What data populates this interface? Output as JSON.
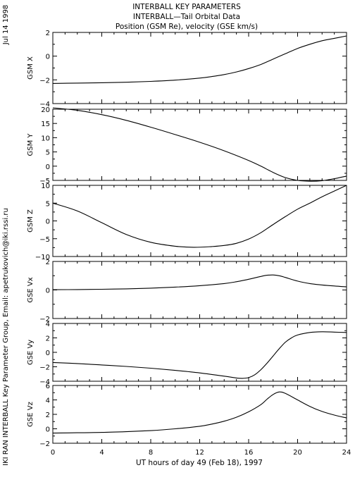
{
  "header": {
    "title_lines": [
      "INTERBALL KEY PARAMETERS",
      "INTERBALL—Tail Orbital Data",
      "Position (GSM Re), velocity (GSE km/s)"
    ],
    "date": "Jul 14 1998",
    "credit": "IKI RAN INTERBALL Key Parameter Group, Email: apetrukovich@iki.rssi.ru"
  },
  "chart_data": {
    "type": "line",
    "xlabel": "UT hours of day  49 (Feb 18), 1997",
    "xlim": [
      0,
      24
    ],
    "xticks": [
      "0",
      "4",
      "8",
      "12",
      "16",
      "20",
      "24"
    ],
    "xtick_values": [
      0,
      4,
      8,
      12,
      16,
      20,
      24
    ],
    "x_minor_step": 1,
    "grid": false,
    "line_color": "#000000",
    "panels": [
      {
        "ylabel": "GSM X",
        "ylim": [
          -4,
          2
        ],
        "yticks": [
          -4,
          -2,
          0,
          2
        ],
        "ytick_labels": [
          "−4",
          "−2",
          "0",
          "2"
        ],
        "x": [
          0,
          2,
          4,
          6,
          8,
          10,
          12,
          13,
          14,
          15,
          16,
          17,
          18,
          19,
          20,
          21,
          22,
          23,
          24
        ],
        "values": [
          -2.3,
          -2.27,
          -2.24,
          -2.2,
          -2.13,
          -2.02,
          -1.85,
          -1.72,
          -1.55,
          -1.33,
          -1.05,
          -0.7,
          -0.25,
          0.2,
          0.65,
          1.0,
          1.3,
          1.5,
          1.7
        ]
      },
      {
        "ylabel": "GSM Y",
        "ylim": [
          -5,
          20
        ],
        "yticks": [
          -5,
          0,
          5,
          10,
          15,
          20
        ],
        "ytick_labels": [
          "−5",
          "0",
          "5",
          "10",
          "15",
          "20"
        ],
        "x": [
          0,
          2,
          4,
          6,
          8,
          10,
          12,
          14,
          16,
          17,
          18,
          19,
          20,
          21,
          22,
          23,
          24
        ],
        "values": [
          20.5,
          19.6,
          18.1,
          16.1,
          13.7,
          11.1,
          8.4,
          5.4,
          2.0,
          0.0,
          -2.2,
          -4.0,
          -5.0,
          -5.3,
          -5.1,
          -4.4,
          -3.5
        ]
      },
      {
        "ylabel": "GSM Z",
        "ylim": [
          -10,
          10
        ],
        "yticks": [
          -10,
          -5,
          0,
          5,
          10
        ],
        "ytick_labels": [
          "−10",
          "−5",
          "0",
          "5",
          "10"
        ],
        "x": [
          0,
          2,
          4,
          6,
          8,
          10,
          11.5,
          13,
          14,
          15,
          16,
          17,
          18,
          19,
          20,
          21,
          22,
          23,
          24
        ],
        "values": [
          5.0,
          2.8,
          -0.5,
          -3.8,
          -6.0,
          -7.1,
          -7.4,
          -7.2,
          -6.9,
          -6.3,
          -5.1,
          -3.3,
          -1.0,
          1.2,
          3.3,
          5.0,
          6.8,
          8.4,
          10.0
        ]
      },
      {
        "ylabel": "GSE Vx",
        "ylim": [
          -2,
          2
        ],
        "yticks": [
          -2,
          0,
          2
        ],
        "ytick_labels": [
          "−2",
          "0",
          "2"
        ],
        "x": [
          0,
          2,
          4,
          6,
          8,
          10,
          12,
          14,
          15,
          16,
          17,
          17.5,
          18,
          18.5,
          19,
          20,
          21,
          22,
          23,
          24
        ],
        "values": [
          0.02,
          0.03,
          0.05,
          0.08,
          0.13,
          0.2,
          0.3,
          0.45,
          0.58,
          0.75,
          0.95,
          1.03,
          1.05,
          1.0,
          0.88,
          0.62,
          0.45,
          0.35,
          0.28,
          0.22
        ]
      },
      {
        "ylabel": "GSE Vy",
        "ylim": [
          -4,
          4
        ],
        "yticks": [
          -4,
          -2,
          0,
          2,
          4
        ],
        "ytick_labels": [
          "−4",
          "−2",
          "0",
          "2",
          "4"
        ],
        "x": [
          0,
          2,
          4,
          6,
          8,
          10,
          12,
          14,
          15,
          15.5,
          16,
          16.5,
          17,
          17.5,
          18,
          18.5,
          19,
          19.5,
          20,
          21,
          22,
          23,
          24
        ],
        "values": [
          -1.4,
          -1.55,
          -1.75,
          -1.95,
          -2.2,
          -2.5,
          -2.85,
          -3.3,
          -3.55,
          -3.6,
          -3.5,
          -3.1,
          -2.4,
          -1.5,
          -0.5,
          0.5,
          1.4,
          2.0,
          2.4,
          2.75,
          2.85,
          2.8,
          2.75
        ]
      },
      {
        "ylabel": "GSE Vz",
        "ylim": [
          -2,
          6
        ],
        "yticks": [
          -2,
          0,
          2,
          4,
          6
        ],
        "ytick_labels": [
          "−2",
          "0",
          "2",
          "4",
          "6"
        ],
        "x": [
          0,
          2,
          4,
          6,
          8,
          10,
          12,
          13,
          14,
          15,
          16,
          17,
          17.5,
          18,
          18.5,
          19,
          20,
          21,
          22,
          23,
          24
        ],
        "values": [
          -0.6,
          -0.55,
          -0.5,
          -0.4,
          -0.25,
          0.0,
          0.35,
          0.65,
          1.05,
          1.6,
          2.35,
          3.35,
          4.1,
          4.75,
          5.1,
          4.9,
          4.0,
          3.1,
          2.4,
          1.9,
          1.5
        ]
      }
    ]
  }
}
